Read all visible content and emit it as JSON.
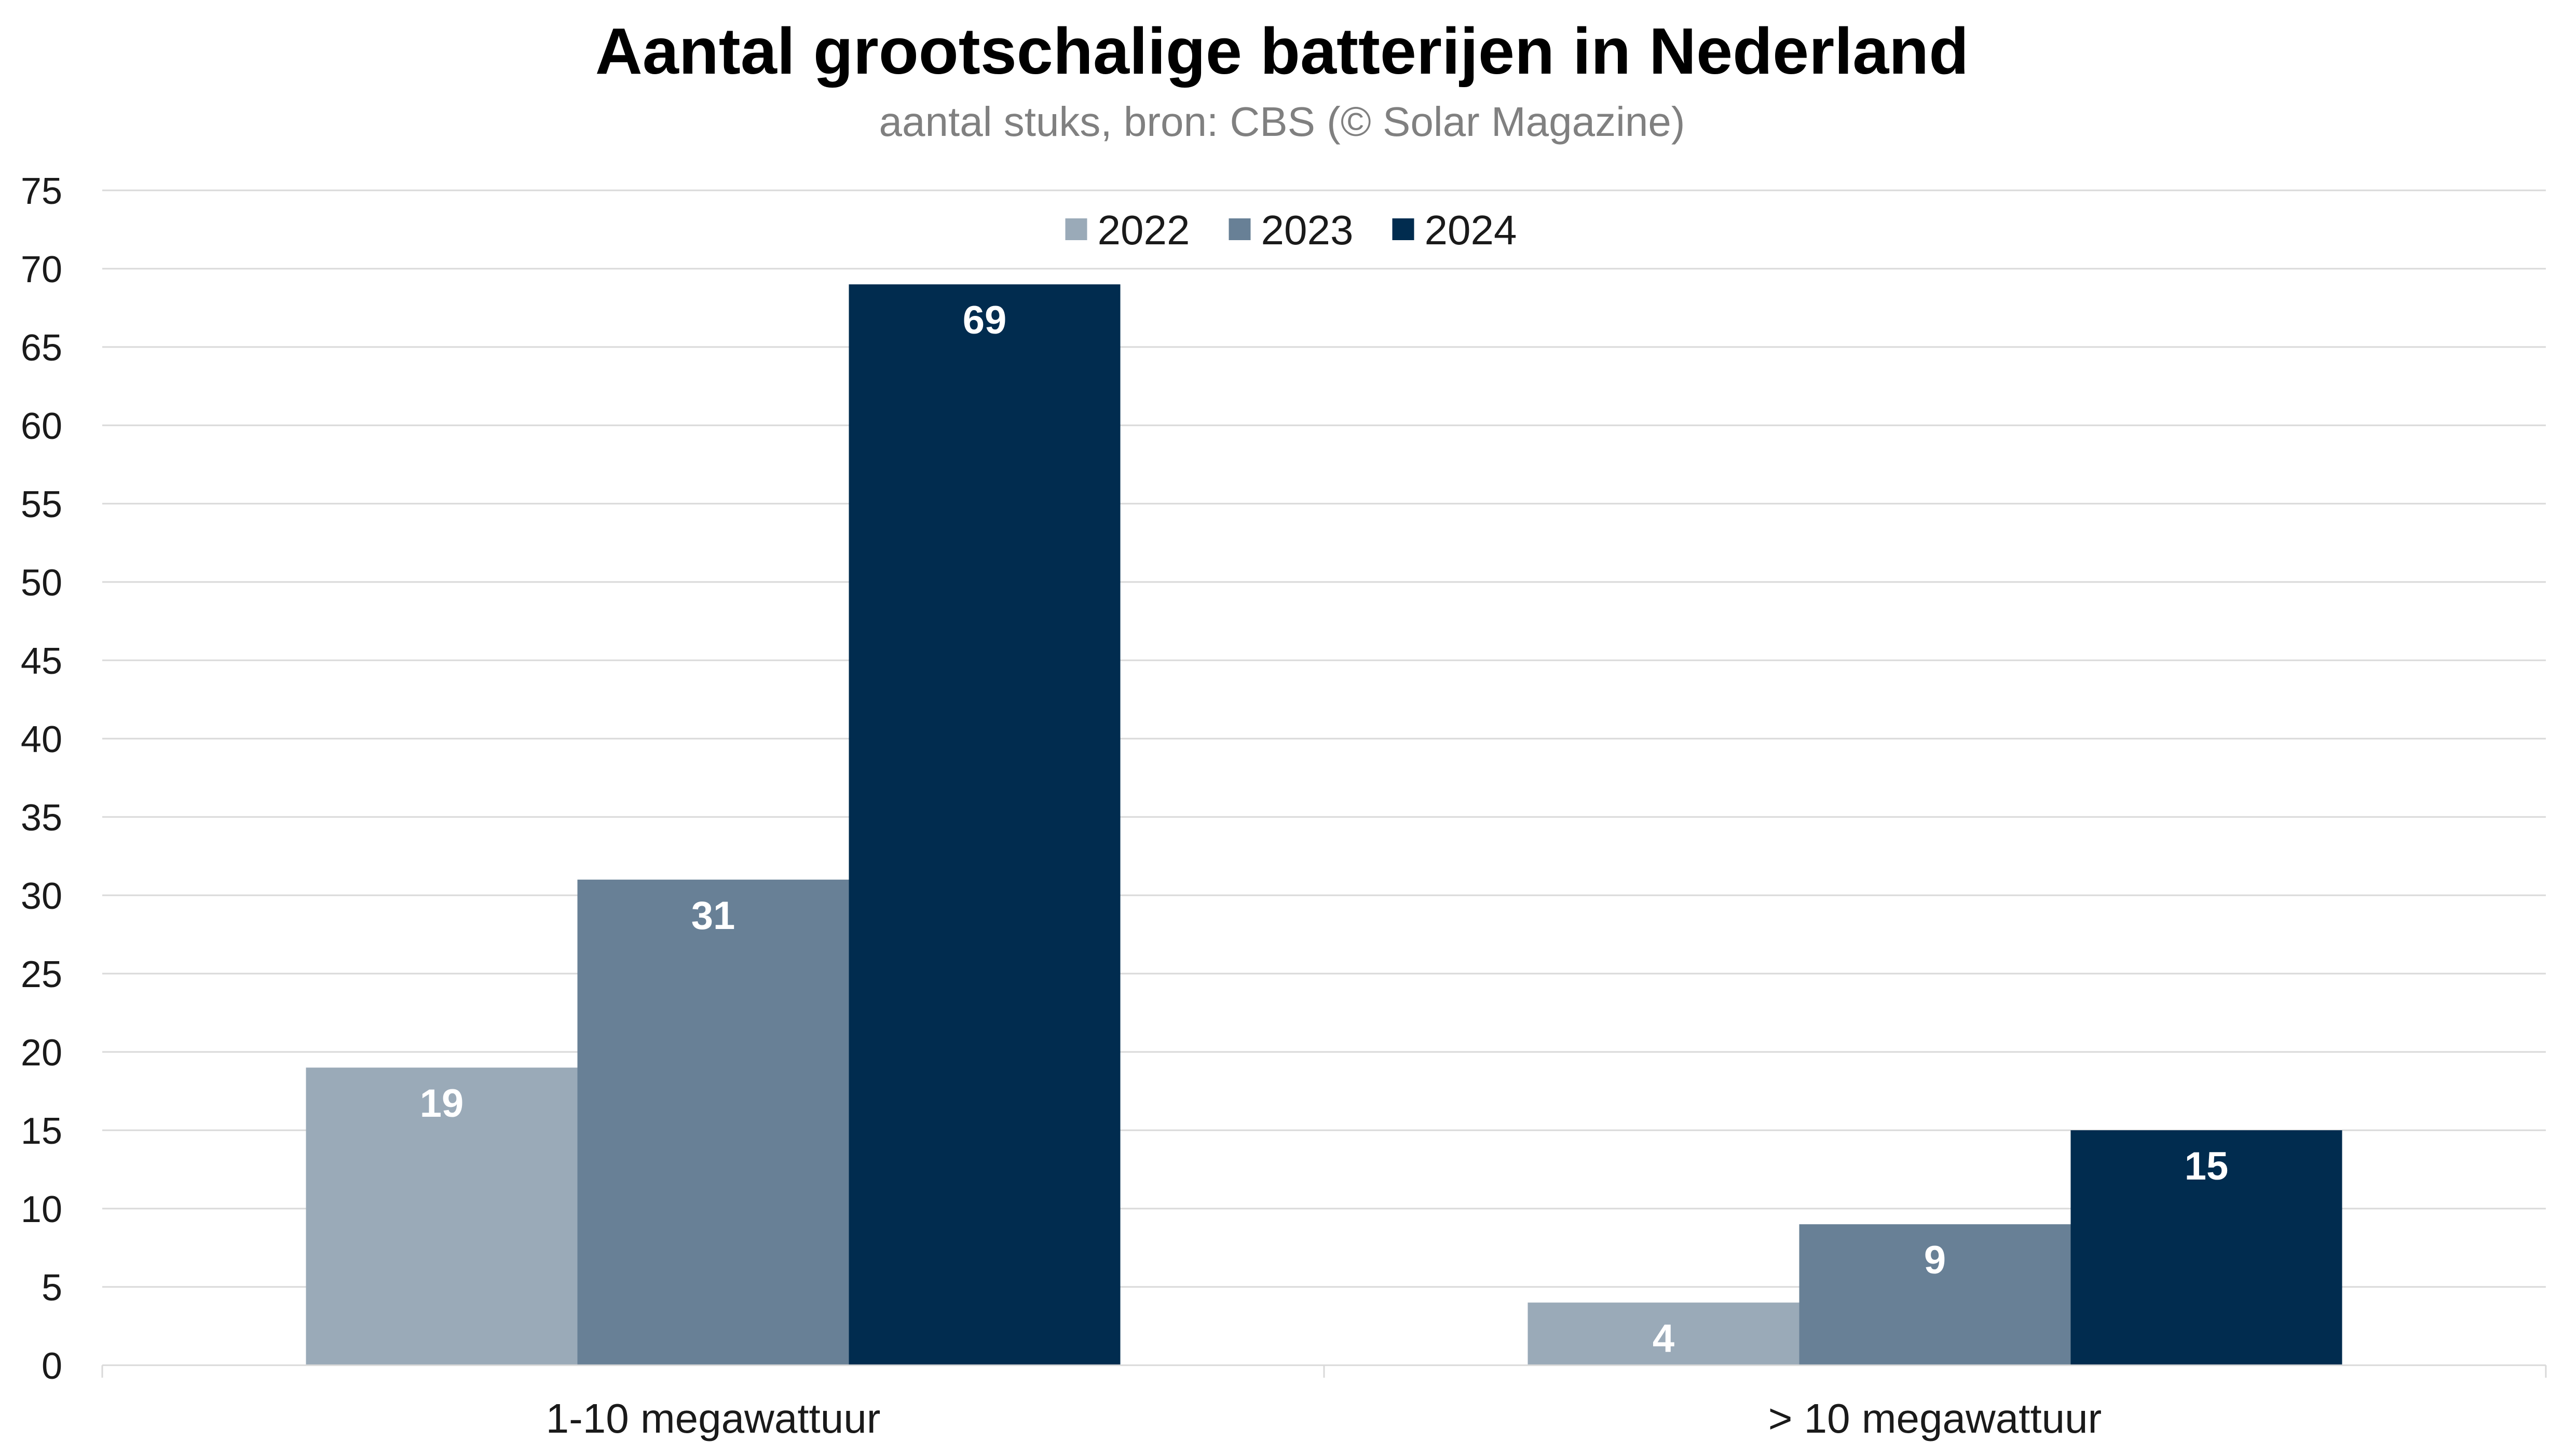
{
  "chart_data": {
    "type": "bar",
    "title": "Aantal grootschalige batterijen in Nederland",
    "subtitle": "aantal stuks, bron: CBS (© Solar Magazine)",
    "xlabel": "",
    "ylabel": "",
    "categories": [
      "1-10 megawattuur",
      "> 10 megawattuur"
    ],
    "series": [
      {
        "name": "2022",
        "values": [
          19,
          4
        ],
        "color": "#9aaab8"
      },
      {
        "name": "2023",
        "values": [
          31,
          9
        ],
        "color": "#688096"
      },
      {
        "name": "2024",
        "values": [
          69,
          15
        ],
        "color": "#012c4f"
      }
    ],
    "ylim": [
      0,
      75
    ],
    "yticks": [
      0,
      5,
      10,
      15,
      20,
      25,
      30,
      35,
      40,
      45,
      50,
      55,
      60,
      65,
      70,
      75
    ],
    "grid": true,
    "legend_position": "top-center",
    "data_labels": true
  }
}
